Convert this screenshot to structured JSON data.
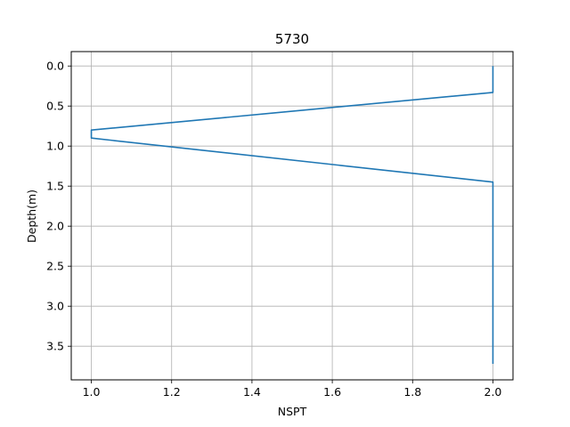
{
  "chart_data": {
    "type": "line",
    "title": "5730",
    "xlabel": "NSPT",
    "ylabel": "Depth(m)",
    "xlim": [
      0.95,
      2.05
    ],
    "ylim": [
      3.92,
      -0.18
    ],
    "y_inverted": true,
    "grid": true,
    "x_ticks": [
      "1.0",
      "1.2",
      "1.4",
      "1.6",
      "1.8",
      "2.0"
    ],
    "y_ticks": [
      "0.0",
      "0.5",
      "1.0",
      "1.5",
      "2.0",
      "2.5",
      "3.0",
      "3.5"
    ],
    "series": [
      {
        "color": "#1f77b4",
        "points": [
          {
            "x": 2.0,
            "y": 0.0
          },
          {
            "x": 2.0,
            "y": 0.33
          },
          {
            "x": 1.0,
            "y": 0.8
          },
          {
            "x": 1.0,
            "y": 0.9
          },
          {
            "x": 2.0,
            "y": 1.45
          },
          {
            "x": 2.0,
            "y": 3.72
          }
        ]
      }
    ]
  }
}
